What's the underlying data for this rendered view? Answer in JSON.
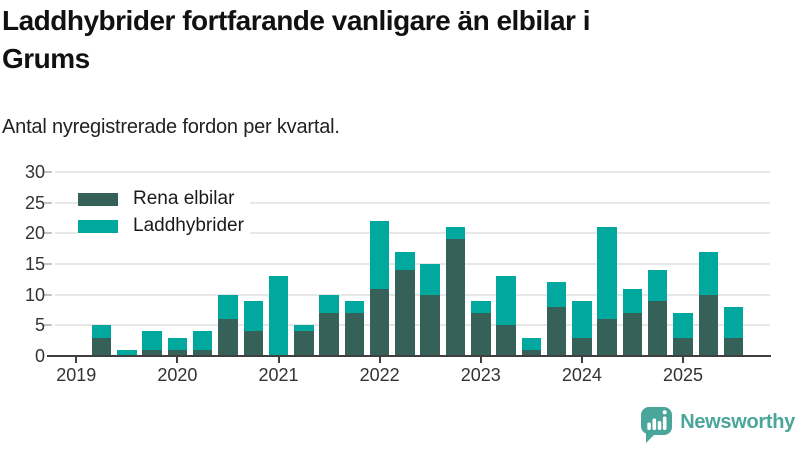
{
  "header": {
    "title_line1": "Laddhybrider fortfarande vanligare än elbilar i",
    "title_line2": "Grums",
    "subtitle": "Antal nyregistrerade fordon per kvartal."
  },
  "chart_data": {
    "type": "bar",
    "stacked": true,
    "title": "Laddhybrider fortfarande vanligare än elbilar i Grums",
    "subtitle": "Antal nyregistrerade fordon per kvartal.",
    "categories": [
      "2019 Q1",
      "2019 Q2",
      "2019 Q3",
      "2019 Q4",
      "2020 Q1",
      "2020 Q2",
      "2020 Q3",
      "2020 Q4",
      "2021 Q1",
      "2021 Q2",
      "2021 Q3",
      "2021 Q4",
      "2022 Q1",
      "2022 Q2",
      "2022 Q3",
      "2022 Q4",
      "2023 Q1",
      "2023 Q2",
      "2023 Q3",
      "2023 Q4",
      "2024 Q1",
      "2024 Q2",
      "2024 Q3",
      "2024 Q4",
      "2025 Q1",
      "2025 Q2",
      "2025 Q3"
    ],
    "series": [
      {
        "name": "Rena elbilar",
        "color": "#366159",
        "values": [
          0,
          3,
          0,
          1,
          1,
          1,
          6,
          4,
          0,
          4,
          7,
          7,
          11,
          14,
          10,
          19,
          7,
          5,
          1,
          8,
          3,
          6,
          7,
          9,
          3,
          10,
          3
        ]
      },
      {
        "name": "Laddhybrider",
        "color": "#00a89d",
        "values": [
          0,
          2,
          1,
          3,
          2,
          3,
          4,
          5,
          13,
          1,
          3,
          2,
          11,
          3,
          5,
          2,
          2,
          8,
          2,
          4,
          6,
          15,
          4,
          5,
          4,
          7,
          5
        ]
      }
    ],
    "x_tick_labels": [
      "2019",
      "2020",
      "2021",
      "2022",
      "2023",
      "2024",
      "2025"
    ],
    "x_tick_category_indices": [
      0,
      4,
      8,
      12,
      16,
      20,
      24
    ],
    "ylim": [
      0,
      30
    ],
    "yticks": [
      0,
      5,
      10,
      15,
      20,
      25,
      30
    ],
    "grid": true,
    "legend_position": "top-left"
  },
  "footer": {
    "brand": "Newsworthy",
    "brand_color": "#4aa69a"
  }
}
